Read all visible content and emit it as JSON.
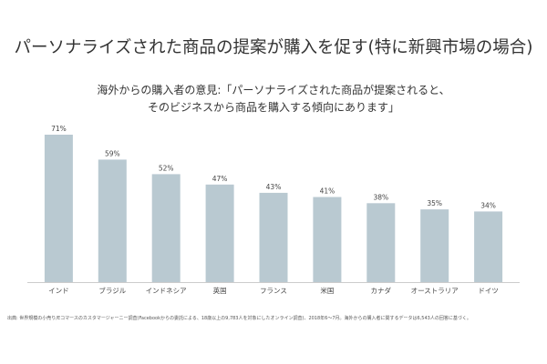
{
  "header": {
    "title": "パーソナライズされた商品の提案が購入を促す(特に新興市場の場合)",
    "subtitle_line1": "海外からの購入者の意見:「パーソナライズされた商品が提案されると、",
    "subtitle_line2": "そのビジネスから商品を購入する傾向にあります」"
  },
  "chart_data": {
    "type": "bar",
    "title": "パーソナライズされた商品の提案が購入を促す(特に新興市場の場合)",
    "categories": [
      "インド",
      "ブラジル",
      "インドネシア",
      "英国",
      "フランス",
      "米国",
      "カナダ",
      "オーストラリア",
      "ドイツ"
    ],
    "values": [
      71,
      59,
      52,
      47,
      43,
      41,
      38,
      35,
      34
    ],
    "value_labels": [
      "71%",
      "59%",
      "52%",
      "47%",
      "43%",
      "41%",
      "38%",
      "35%",
      "34%"
    ],
    "unit": "%",
    "ylim": [
      0,
      75
    ],
    "grid": false,
    "bar_color": "#b9c9d1",
    "axis_color": "#cccccc"
  },
  "footnote": "出典: 世界規模の小売り/Eコマースのカスタマージャーニー調査(Facebookからの委託による、18歳以上の9,783人を対象にしたオンライン調査)、2018年6〜7月。海外からの購入者に関するデータは6,543人の回答に基づく。"
}
